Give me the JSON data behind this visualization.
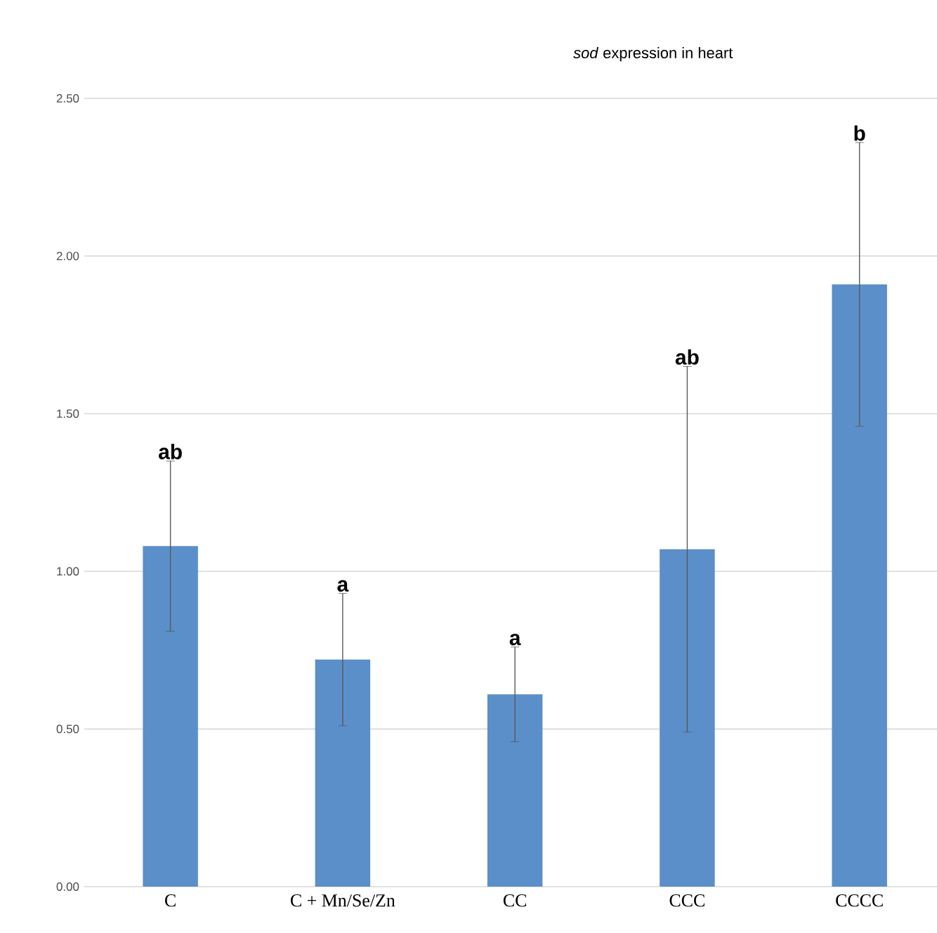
{
  "chart_data": {
    "type": "bar",
    "title": "*sod* expression in heart",
    "categories": [
      "C",
      "C + Mn/Se/Zn",
      "CC",
      "CCC",
      "CCCC"
    ],
    "values": [
      1.08,
      0.72,
      0.61,
      1.07,
      1.91
    ],
    "errors": [
      0.27,
      0.21,
      0.15,
      0.58,
      0.45
    ],
    "color": "#5b8fc9",
    "ylim": [
      0,
      2.5
    ],
    "yticks": [
      {
        "value": 0,
        "label": "0.00"
      },
      {
        "value": 0.5,
        "label": "0.50"
      },
      {
        "value": 1,
        "label": "1.00"
      },
      {
        "value": 1.5,
        "label": "1.50"
      },
      {
        "value": 2,
        "label": "2.00"
      },
      {
        "value": 2.5,
        "label": "2.50"
      }
    ],
    "grid": "y",
    "annotations": [
      {
        "text": "ab",
        "x": "C",
        "y": 1.35
      },
      {
        "text": "a",
        "x": "C + Mn/Se/Zn",
        "y": 0.93
      },
      {
        "text": "a",
        "x": "CC",
        "y": 0.76
      },
      {
        "text": "ab",
        "x": "CCC",
        "y": 1.65
      },
      {
        "text": "b",
        "x": "CCCC",
        "y": 2.36
      }
    ]
  }
}
